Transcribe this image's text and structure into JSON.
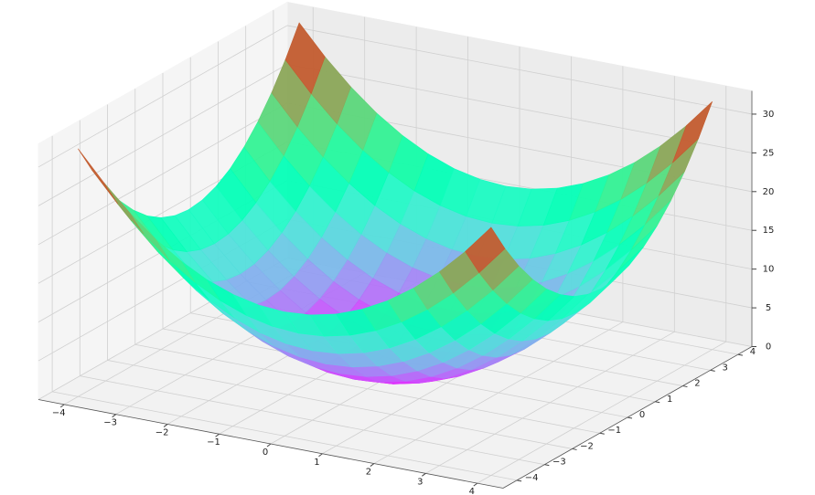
{
  "chart_data": {
    "type": "surface",
    "colormap": "rainbow",
    "x": [
      -4,
      -3.5,
      -3,
      -2.5,
      -2,
      -1.5,
      -1,
      -0.5,
      0,
      0.5,
      1,
      1.5,
      2,
      2.5,
      3,
      3.5,
      4
    ],
    "y": [
      -4,
      -3.5,
      -3,
      -2.5,
      -2,
      -1.5,
      -1,
      -0.5,
      0,
      0.5,
      1,
      1.5,
      2,
      2.5,
      3,
      3.5,
      4
    ],
    "z": [
      [
        32,
        28.25,
        25,
        22.25,
        20,
        18.25,
        17,
        16.25,
        16,
        16.25,
        17,
        18.25,
        20,
        22.25,
        25,
        28.25,
        32
      ],
      [
        28.25,
        24.5,
        21.25,
        18.5,
        16.25,
        14.5,
        13.25,
        12.5,
        12.25,
        12.5,
        13.25,
        14.5,
        16.25,
        18.5,
        21.25,
        24.5,
        28.25
      ],
      [
        25,
        21.25,
        18,
        15.25,
        13,
        11.25,
        10,
        9.25,
        9,
        9.25,
        10,
        11.25,
        13,
        15.25,
        18,
        21.25,
        25
      ],
      [
        22.25,
        18.5,
        15.25,
        12.5,
        10.25,
        8.5,
        7.25,
        6.5,
        6.25,
        6.5,
        7.25,
        8.5,
        10.25,
        12.5,
        15.25,
        18.5,
        22.25
      ],
      [
        20,
        16.25,
        13,
        10.25,
        8,
        6.25,
        5,
        4.25,
        4,
        4.25,
        5,
        6.25,
        8,
        10.25,
        13,
        16.25,
        20
      ],
      [
        18.25,
        14.5,
        11.25,
        8.5,
        6.25,
        4.5,
        3.25,
        2.5,
        2.25,
        2.5,
        3.25,
        4.5,
        6.25,
        8.5,
        11.25,
        14.5,
        18.25
      ],
      [
        17,
        13.25,
        10,
        7.25,
        5,
        3.25,
        2,
        1.25,
        1,
        1.25,
        2,
        3.25,
        5,
        7.25,
        10,
        13.25,
        17
      ],
      [
        16.25,
        12.5,
        9.25,
        6.5,
        4.25,
        2.5,
        1.25,
        0.5,
        0.25,
        0.5,
        1.25,
        2.5,
        4.25,
        6.5,
        9.25,
        12.5,
        16.25
      ],
      [
        16,
        12.25,
        9,
        6.25,
        4,
        2.25,
        1,
        0.25,
        0,
        0.25,
        1,
        2.25,
        4,
        6.25,
        9,
        12.25,
        16
      ],
      [
        16.25,
        12.5,
        9.25,
        6.5,
        4.25,
        2.5,
        1.25,
        0.5,
        0.25,
        0.5,
        1.25,
        2.5,
        4.25,
        6.5,
        9.25,
        12.5,
        16.25
      ],
      [
        17,
        13.25,
        10,
        7.25,
        5,
        3.25,
        2,
        1.25,
        1,
        1.25,
        2,
        3.25,
        5,
        7.25,
        10,
        13.25,
        17
      ],
      [
        18.25,
        14.5,
        11.25,
        8.5,
        6.25,
        4.5,
        3.25,
        2.5,
        2.25,
        2.5,
        3.25,
        4.5,
        6.25,
        8.5,
        11.25,
        14.5,
        18.25
      ],
      [
        20,
        16.25,
        13,
        10.25,
        8,
        6.25,
        5,
        4.25,
        4,
        4.25,
        5,
        6.25,
        8,
        10.25,
        13,
        16.25,
        20
      ],
      [
        22.25,
        18.5,
        15.25,
        12.5,
        10.25,
        8.5,
        7.25,
        6.5,
        6.25,
        6.5,
        7.25,
        8.5,
        10.25,
        12.5,
        15.25,
        18.5,
        22.25
      ],
      [
        25,
        21.25,
        18,
        15.25,
        13,
        11.25,
        10,
        9.25,
        9,
        9.25,
        10,
        11.25,
        13,
        15.25,
        18,
        21.25,
        25
      ],
      [
        28.25,
        24.5,
        21.25,
        18.5,
        16.25,
        14.5,
        13.25,
        12.5,
        12.25,
        12.5,
        13.25,
        14.5,
        16.25,
        18.5,
        21.25,
        24.5,
        28.25
      ],
      [
        32,
        28.25,
        25,
        22.25,
        20,
        18.25,
        17,
        16.25,
        16,
        16.25,
        17,
        18.25,
        20,
        22.25,
        25,
        28.25,
        32
      ]
    ],
    "xlim": [
      -4.5,
      4.5
    ],
    "ylim": [
      -4.5,
      4.5
    ],
    "zlim": [
      0,
      33
    ],
    "xticks": [
      {
        "value": -4,
        "label": "−4"
      },
      {
        "value": -3,
        "label": "−3"
      },
      {
        "value": -2,
        "label": "−2"
      },
      {
        "value": -1,
        "label": "−1"
      },
      0,
      1,
      2,
      3,
      4
    ],
    "yticks": [
      {
        "value": -4,
        "label": "−4"
      },
      {
        "value": -3,
        "label": "−3"
      },
      {
        "value": -2,
        "label": "−2"
      },
      {
        "value": -1,
        "label": "−1"
      },
      0,
      1,
      2,
      3,
      4
    ],
    "zticks": [
      0,
      5,
      10,
      15,
      20,
      25,
      30
    ],
    "grid": true
  }
}
